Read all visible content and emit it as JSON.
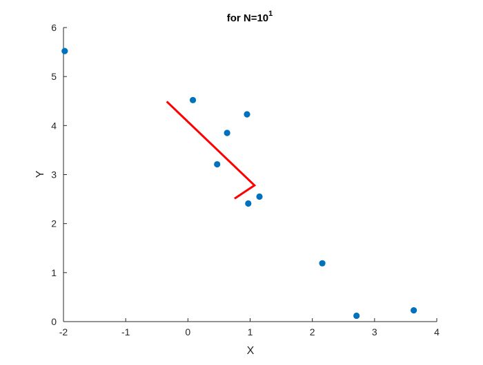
{
  "chart_data": {
    "type": "scatter",
    "title": "for N=10",
    "title_superscript": "1",
    "xlabel": "X",
    "ylabel": "Y",
    "xlim": [
      -2,
      4
    ],
    "ylim": [
      0,
      6
    ],
    "xticks": [
      -2,
      -1,
      0,
      1,
      2,
      3,
      4
    ],
    "yticks": [
      0,
      1,
      2,
      3,
      4,
      5,
      6
    ],
    "grid": false,
    "series": [
      {
        "kind": "points",
        "color": "#0072BD",
        "x": [
          -1.98,
          0.08,
          0.95,
          0.63,
          0.47,
          1.15,
          0.97,
          2.16,
          2.71,
          3.63
        ],
        "y": [
          5.52,
          4.52,
          4.23,
          3.85,
          3.21,
          2.55,
          2.41,
          1.19,
          0.12,
          0.23
        ]
      },
      {
        "kind": "line",
        "color": "#FF0000",
        "x": [
          -0.34,
          1.07,
          0.75
        ],
        "y": [
          4.49,
          2.78,
          2.51
        ]
      }
    ]
  }
}
